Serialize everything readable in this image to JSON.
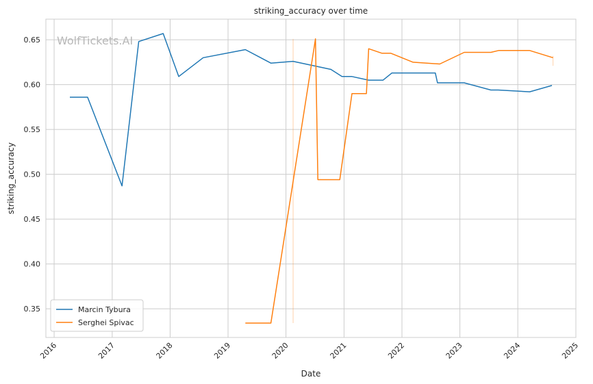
{
  "chart_data": {
    "type": "line",
    "title": "striking_accuracy over time",
    "xlabel": "Date",
    "ylabel": "striking_accuracy",
    "watermark": "WolfTickets.AI",
    "xlim": [
      "2015-11-10",
      "2025-01-01"
    ],
    "ylim": [
      0.318,
      0.673
    ],
    "x_ticks": [
      "2016",
      "2017",
      "2018",
      "2019",
      "2020",
      "2021",
      "2022",
      "2023",
      "2024",
      "2025"
    ],
    "y_ticks": [
      "0.35",
      "0.40",
      "0.45",
      "0.50",
      "0.55",
      "0.60",
      "0.65"
    ],
    "grid": true,
    "legend_position": "lower-left",
    "series": [
      {
        "name": "Marcin Tybura",
        "color": "#1f77b4",
        "points": [
          [
            "2016-04-09",
            0.586
          ],
          [
            "2016-07-30",
            0.586
          ],
          [
            "2017-03-04",
            0.487
          ],
          [
            "2017-06-17",
            0.648
          ],
          [
            "2017-11-18",
            0.657
          ],
          [
            "2018-02-24",
            0.609
          ],
          [
            "2018-07-28",
            0.63
          ],
          [
            "2019-04-20",
            0.639
          ],
          [
            "2019-09-28",
            0.624
          ],
          [
            "2020-02-15",
            0.626
          ],
          [
            "2020-10-10",
            0.617
          ],
          [
            "2020-12-19",
            0.609
          ],
          [
            "2021-02-20",
            0.609
          ],
          [
            "2021-06-05",
            0.605
          ],
          [
            "2021-09-04",
            0.605
          ],
          [
            "2021-10-30",
            0.613
          ],
          [
            "2022-07-30",
            0.613
          ],
          [
            "2022-08-13",
            0.602
          ],
          [
            "2023-01-28",
            0.602
          ],
          [
            "2023-07-15",
            0.594
          ],
          [
            "2023-08-30",
            0.594
          ],
          [
            "2024-03-16",
            0.592
          ],
          [
            "2024-08-03",
            0.599
          ]
        ]
      },
      {
        "name": "Serghei Spivac",
        "color": "#ff7f0e",
        "points": [
          [
            "2019-04-20",
            0.334
          ],
          [
            "2019-09-28",
            0.334
          ],
          [
            "2020-07-05",
            0.651
          ],
          [
            "2020-07-20",
            0.494
          ],
          [
            "2020-12-05",
            0.494
          ],
          [
            "2021-02-20",
            0.59
          ],
          [
            "2021-05-22",
            0.59
          ],
          [
            "2021-06-05",
            0.64
          ],
          [
            "2021-08-28",
            0.635
          ],
          [
            "2021-10-23",
            0.635
          ],
          [
            "2022-03-12",
            0.625
          ],
          [
            "2022-08-27",
            0.623
          ],
          [
            "2023-01-28",
            0.636
          ],
          [
            "2023-07-15",
            0.636
          ],
          [
            "2023-09-02",
            0.638
          ],
          [
            "2024-03-16",
            0.638
          ],
          [
            "2024-08-10",
            0.63
          ]
        ]
      }
    ],
    "annotations": [
      {
        "type": "vline",
        "x": "2020-02-15",
        "y0": 0.334,
        "y1": 0.651,
        "color": "#ff7f0e"
      },
      {
        "type": "vline",
        "x": "2024-08-10",
        "y0": 0.621,
        "y1": 0.632,
        "color": "#ff7f0e"
      }
    ]
  }
}
